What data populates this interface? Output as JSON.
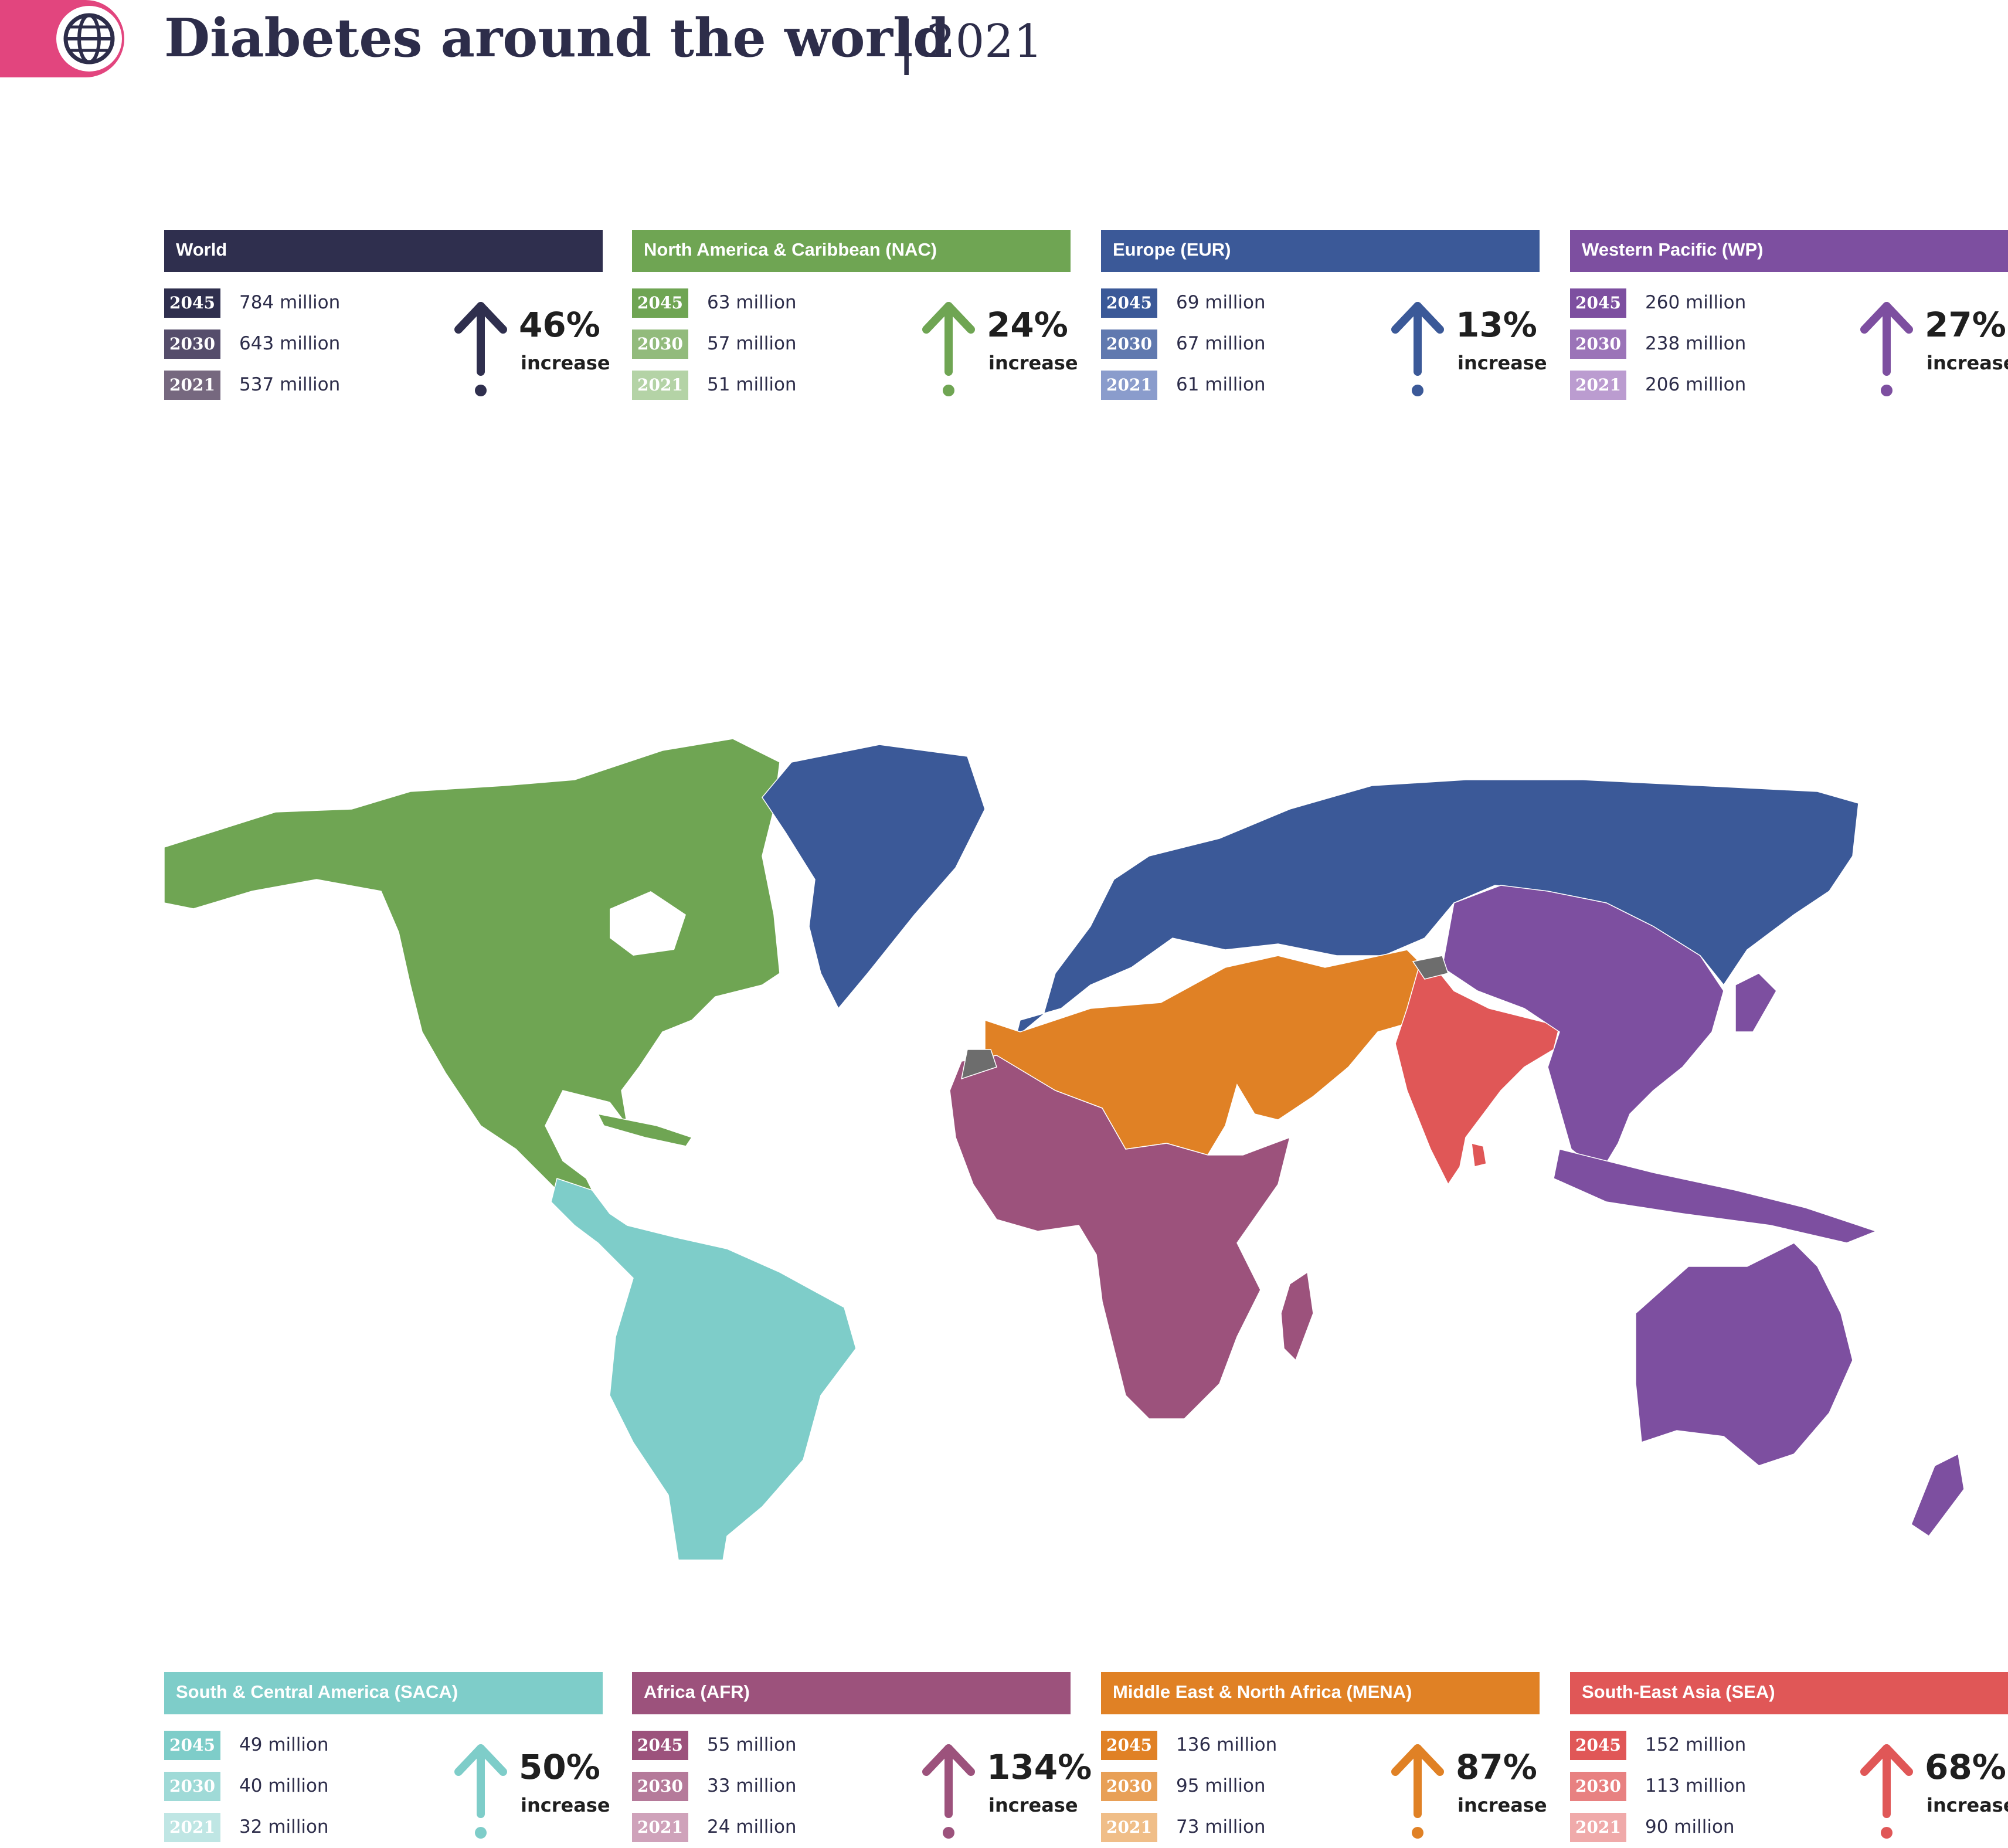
{
  "header": {
    "title": "Diabetes around the world",
    "separator": "|",
    "year": "2021",
    "icon": "globe-icon"
  },
  "panels": [
    {
      "id": "world",
      "title": "World",
      "color": "#2f2f4e",
      "rows": [
        {
          "year": "2045",
          "value": "784 million",
          "color": "#2f2f4e"
        },
        {
          "year": "2030",
          "value": "643 million",
          "color": "#554d6b"
        },
        {
          "year": "2021",
          "value": "537 million",
          "color": "#76687f"
        }
      ],
      "increase": "46%",
      "increase_label": "increase"
    },
    {
      "id": "nac",
      "title": "North America & Caribbean (NAC)",
      "color": "#6fa553",
      "rows": [
        {
          "year": "2045",
          "value": "63 million",
          "color": "#6fa553"
        },
        {
          "year": "2030",
          "value": "57 million",
          "color": "#92bb7c"
        },
        {
          "year": "2021",
          "value": "51 million",
          "color": "#b4d3a6"
        }
      ],
      "increase": "24%",
      "increase_label": "increase"
    },
    {
      "id": "eur",
      "title": "Europe (EUR)",
      "color": "#3b5998",
      "rows": [
        {
          "year": "2045",
          "value": "69 million",
          "color": "#3b5998"
        },
        {
          "year": "2030",
          "value": "67 million",
          "color": "#6079af"
        },
        {
          "year": "2021",
          "value": "61 million",
          "color": "#8a9ccc"
        }
      ],
      "increase": "13%",
      "increase_label": "increase"
    },
    {
      "id": "wp",
      "title": "Western Pacific (WP)",
      "color": "#7d4fa0",
      "rows": [
        {
          "year": "2045",
          "value": "260 million",
          "color": "#7d4fa0"
        },
        {
          "year": "2030",
          "value": "238 million",
          "color": "#9b74b8"
        },
        {
          "year": "2021",
          "value": "206 million",
          "color": "#bb9cd0"
        }
      ],
      "increase": "27%",
      "increase_label": "increase"
    },
    {
      "id": "saca",
      "title": "South & Central America (SACA)",
      "color": "#7ecdc9",
      "rows": [
        {
          "year": "2045",
          "value": "49 million",
          "color": "#7ecdc9"
        },
        {
          "year": "2030",
          "value": "40 million",
          "color": "#9fdad7"
        },
        {
          "year": "2021",
          "value": "32 million",
          "color": "#bfe6e4"
        }
      ],
      "increase": "50%",
      "increase_label": "increase"
    },
    {
      "id": "afr",
      "title": "Africa (AFR)",
      "color": "#9c527c",
      "rows": [
        {
          "year": "2045",
          "value": "55 million",
          "color": "#9c527c"
        },
        {
          "year": "2030",
          "value": "33 million",
          "color": "#b57a9a"
        },
        {
          "year": "2021",
          "value": "24 million",
          "color": "#cfa2ba"
        }
      ],
      "increase": "134%",
      "increase_label": "increase"
    },
    {
      "id": "mena",
      "title": "Middle East & North Africa (MENA)",
      "color": "#e08125",
      "rows": [
        {
          "year": "2045",
          "value": "136 million",
          "color": "#e08125"
        },
        {
          "year": "2030",
          "value": "95 million",
          "color": "#e8a057"
        },
        {
          "year": "2021",
          "value": "73 million",
          "color": "#f0be88"
        }
      ],
      "increase": "87%",
      "increase_label": "increase"
    },
    {
      "id": "sea",
      "title": "South-East Asia (SEA)",
      "color": "#e05757",
      "rows": [
        {
          "year": "2045",
          "value": "152 million",
          "color": "#e05757"
        },
        {
          "year": "2030",
          "value": "113 million",
          "color": "#e88181"
        },
        {
          "year": "2021",
          "value": "90 million",
          "color": "#f0aaaa"
        }
      ],
      "increase": "68%",
      "increase_label": "increase"
    }
  ],
  "map": {
    "type": "choropleth",
    "regions": [
      "NAC",
      "SACA",
      "EUR",
      "MENA",
      "AFR",
      "SEA",
      "WP"
    ],
    "no_data_color": "#6d6d6d"
  }
}
